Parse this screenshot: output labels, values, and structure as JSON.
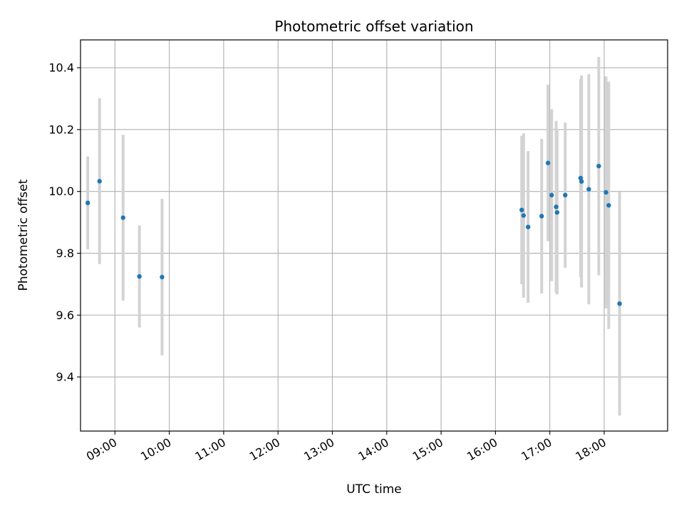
{
  "chart_data": {
    "type": "scatter",
    "title": "Photometric offset variation",
    "xlabel": "UTC time",
    "ylabel": "Photometric offset",
    "x_ticks": [
      "09:00",
      "10:00",
      "11:00",
      "12:00",
      "13:00",
      "14:00",
      "15:00",
      "16:00",
      "17:00",
      "18:00"
    ],
    "y_ticks": [
      "9.4",
      "9.6",
      "9.8",
      "10.0",
      "10.2",
      "10.4"
    ],
    "xlim": [
      "08:22",
      "19:10"
    ],
    "ylim": [
      9.225,
      10.49
    ],
    "grid": true,
    "legend": "none",
    "colors": {
      "point": "#1f77b4",
      "errorbar": "#d3d3d3",
      "grid": "#b0b0b0"
    },
    "points": [
      {
        "x": "08:30",
        "y": 9.963,
        "err": 0.15
      },
      {
        "x": "08:43",
        "y": 10.033,
        "err": 0.268
      },
      {
        "x": "09:09",
        "y": 9.915,
        "err": 0.268
      },
      {
        "x": "09:27",
        "y": 9.725,
        "err": 0.165
      },
      {
        "x": "09:52",
        "y": 9.723,
        "err": 0.253
      },
      {
        "x": "16:29",
        "y": 9.94,
        "err": 0.24
      },
      {
        "x": "16:31",
        "y": 9.922,
        "err": 0.266
      },
      {
        "x": "16:36",
        "y": 9.885,
        "err": 0.245
      },
      {
        "x": "16:51",
        "y": 9.92,
        "err": 0.25
      },
      {
        "x": "16:58",
        "y": 10.092,
        "err": 0.253
      },
      {
        "x": "17:02",
        "y": 9.988,
        "err": 0.278
      },
      {
        "x": "17:07",
        "y": 9.95,
        "err": 0.278
      },
      {
        "x": "17:08",
        "y": 9.932,
        "err": 0.265
      },
      {
        "x": "17:17",
        "y": 9.988,
        "err": 0.235
      },
      {
        "x": "17:34",
        "y": 10.043,
        "err": 0.32
      },
      {
        "x": "17:35",
        "y": 10.032,
        "err": 0.343
      },
      {
        "x": "17:43",
        "y": 10.007,
        "err": 0.372
      },
      {
        "x": "17:54",
        "y": 10.082,
        "err": 0.353
      },
      {
        "x": "18:02",
        "y": 9.997,
        "err": 0.375
      },
      {
        "x": "18:05",
        "y": 9.955,
        "err": 0.4
      },
      {
        "x": "18:17",
        "y": 9.637,
        "err": 0.362
      }
    ]
  }
}
